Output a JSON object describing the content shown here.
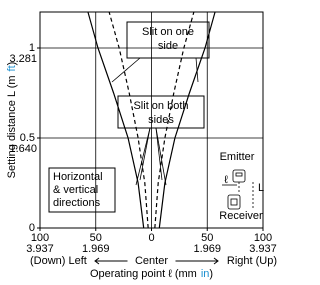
{
  "chart_data": {
    "type": "line",
    "y_title": [
      "Setting distance L (m",
      "ft",
      ")"
    ],
    "x_title": [
      "Operating point ℓ (mm",
      "in",
      ")"
    ],
    "x_direction": [
      "(Down) Left",
      "Center",
      "Right (Up)"
    ],
    "xlim": [
      -100,
      100
    ],
    "xticks": [
      {
        "value": -100,
        "label": "100"
      },
      {
        "value": -50,
        "label": "50"
      },
      0,
      50,
      100
    ],
    "x2lim": [
      -3.937,
      3.937
    ],
    "x2ticks": [
      {
        "value": -3.937,
        "label": "3.937"
      },
      {
        "value": -1.969,
        "label": "1.969"
      },
      1.969,
      3.937
    ],
    "ylim": [
      0,
      1.2
    ],
    "yticks": [
      0,
      0.5,
      1
    ],
    "y2lim": [
      0,
      3.937
    ],
    "y2ticks": [
      {
        "value": 1.64,
        "label": "1.640"
      },
      {
        "value": 3.281,
        "label": "3.281"
      }
    ],
    "grid": true,
    "unit_color": "#1a8fd0",
    "series": [
      {
        "label": [
          "Slit on one",
          "side"
        ],
        "color": "#000000",
        "dashed": false,
        "x": [
          7,
          12,
          21,
          34,
          48,
          57,
          null,
          -7,
          -12,
          -21,
          -34,
          -48,
          -57
        ],
        "values": [
          0,
          0.25,
          0.5,
          0.75,
          1,
          1.2,
          null,
          0,
          0.25,
          0.5,
          0.75,
          1,
          1.2
        ]
      },
      {
        "label": [
          "Slit on both",
          "sides"
        ],
        "color": "#000000",
        "dashed": true,
        "x": [
          3,
          6,
          12,
          20,
          29,
          38,
          null,
          -3,
          -6,
          -12,
          -20,
          -29,
          -38
        ],
        "values": [
          0,
          0.25,
          0.5,
          0.75,
          1,
          1.2,
          null,
          0,
          0.25,
          0.5,
          0.75,
          1,
          1.2
        ]
      }
    ],
    "note": [
      "Horizontal",
      "& vertical",
      "directions"
    ],
    "diagram": {
      "emitter": "Emitter",
      "receiver": "Receiver",
      "distance": "L",
      "offset": "ℓ"
    }
  }
}
